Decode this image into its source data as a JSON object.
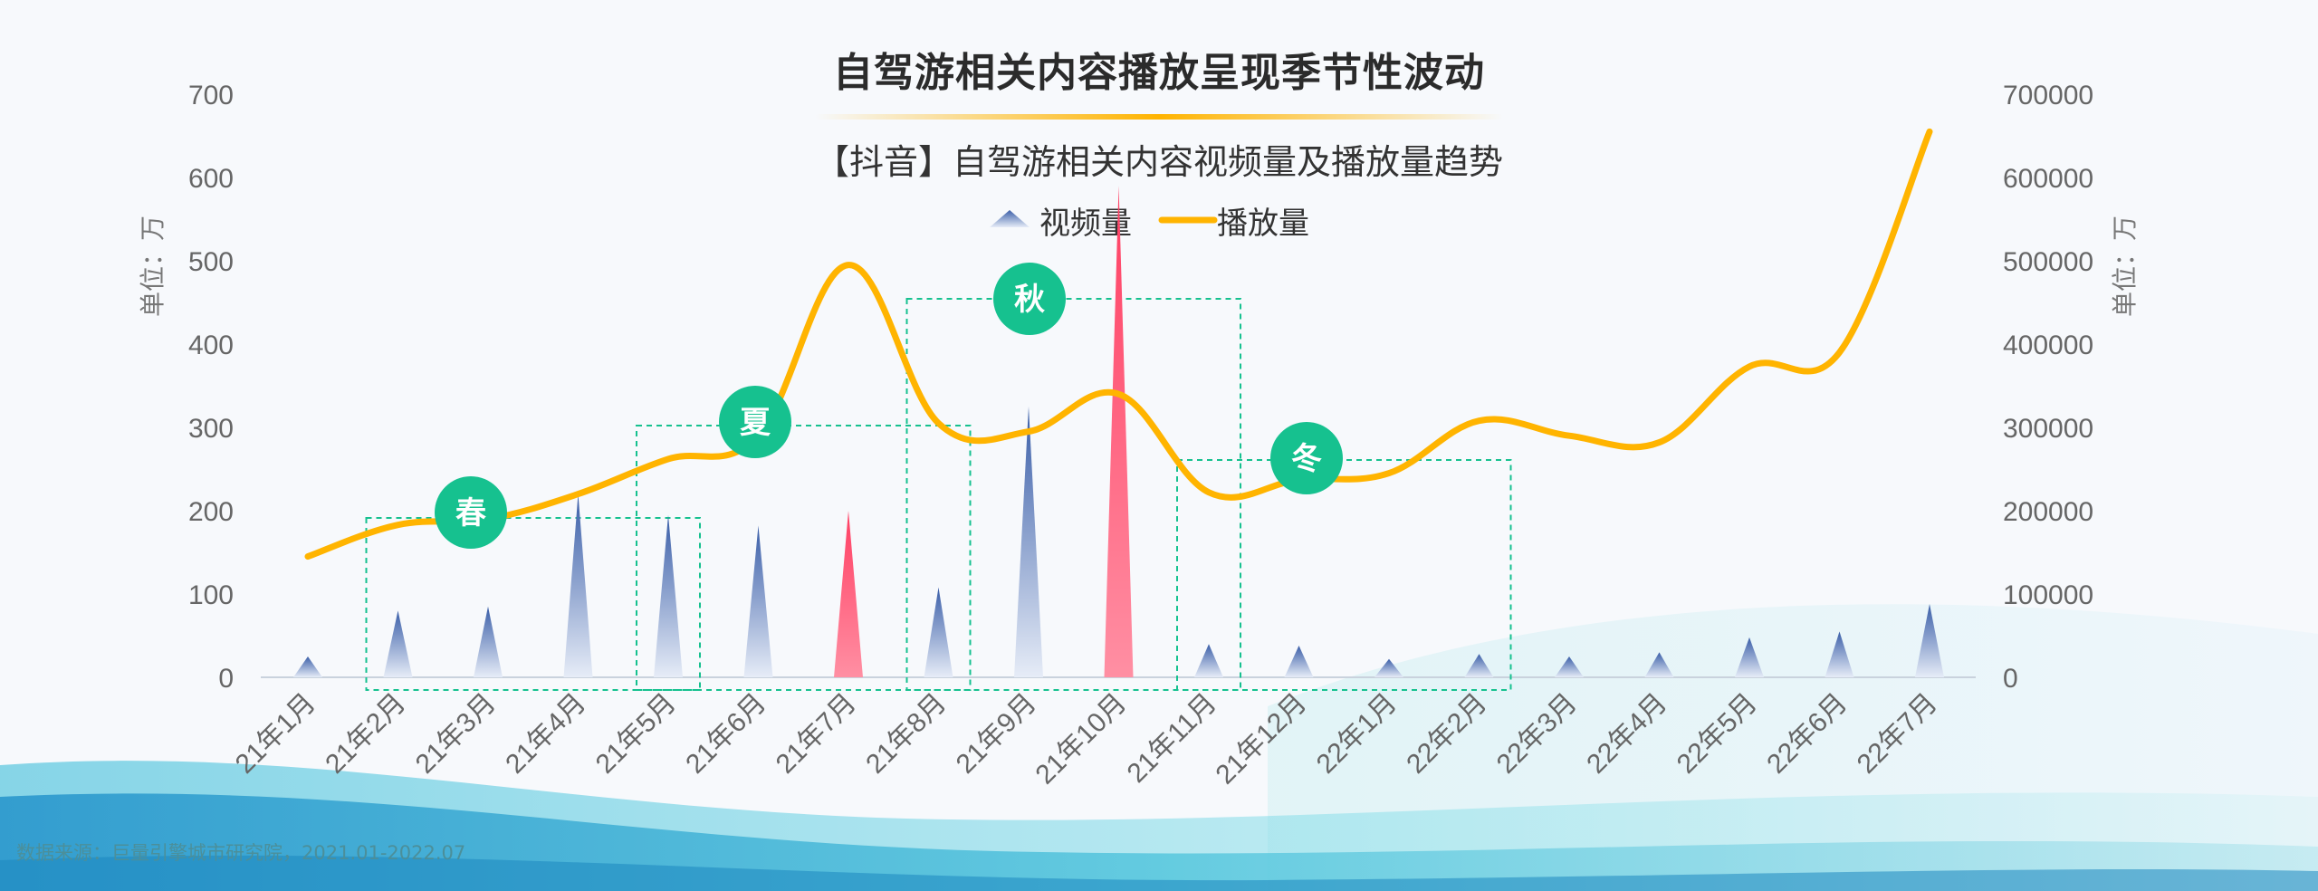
{
  "title": "自驾游相关内容播放呈现季节性波动",
  "subtitle": "【抖音】自驾游相关内容视频量及播放量趋势",
  "source": "数据来源：巨量引擎城市研究院，2021.01-2022.07",
  "colors": {
    "accent": "#ffb400",
    "video_blue": "#4a6fb5",
    "video_red": "#ff4f6d",
    "season_green": "#16c18f",
    "axis_text": "#666666"
  },
  "chart_data": {
    "type": "bar+line",
    "categories": [
      "21年1月",
      "21年2月",
      "21年3月",
      "21年4月",
      "21年5月",
      "21年6月",
      "21年7月",
      "21年8月",
      "21年9月",
      "21年10月",
      "21年11月",
      "21年12月",
      "22年1月",
      "22年2月",
      "22年3月",
      "22年4月",
      "22年5月",
      "22年6月",
      "22年7月"
    ],
    "series": [
      {
        "name": "视频量",
        "axis": "left",
        "type": "triangle-bar",
        "values": [
          25,
          80,
          85,
          220,
          195,
          182,
          200,
          108,
          325,
          590,
          40,
          38,
          22,
          28,
          25,
          30,
          48,
          55,
          88
        ],
        "highlight": [
          6,
          9
        ]
      },
      {
        "name": "播放量",
        "axis": "right",
        "type": "line",
        "values": [
          145000,
          183000,
          190000,
          220000,
          262000,
          290000,
          495000,
          305000,
          295000,
          340000,
          222000,
          237000,
          245000,
          308000,
          290000,
          282000,
          373000,
          390000,
          655000
        ]
      }
    ],
    "y_left": {
      "label": "单位：万",
      "ticks": [
        0,
        100,
        200,
        300,
        400,
        500,
        600,
        700
      ],
      "range": [
        0,
        700
      ]
    },
    "y_right": {
      "label": "单位：万",
      "ticks": [
        0,
        100000,
        200000,
        300000,
        400000,
        500000,
        600000,
        700000
      ],
      "range": [
        0,
        700000
      ]
    },
    "legend": {
      "position": "top-center",
      "items": [
        "视频量",
        "播放量"
      ]
    },
    "annotations": [
      {
        "label": "春",
        "from": 1,
        "to": 4
      },
      {
        "label": "夏",
        "from": 4,
        "to": 7
      },
      {
        "label": "秋",
        "from": 7,
        "to": 10
      },
      {
        "label": "冬",
        "from": 10,
        "to": 13
      }
    ],
    "grid": false
  }
}
